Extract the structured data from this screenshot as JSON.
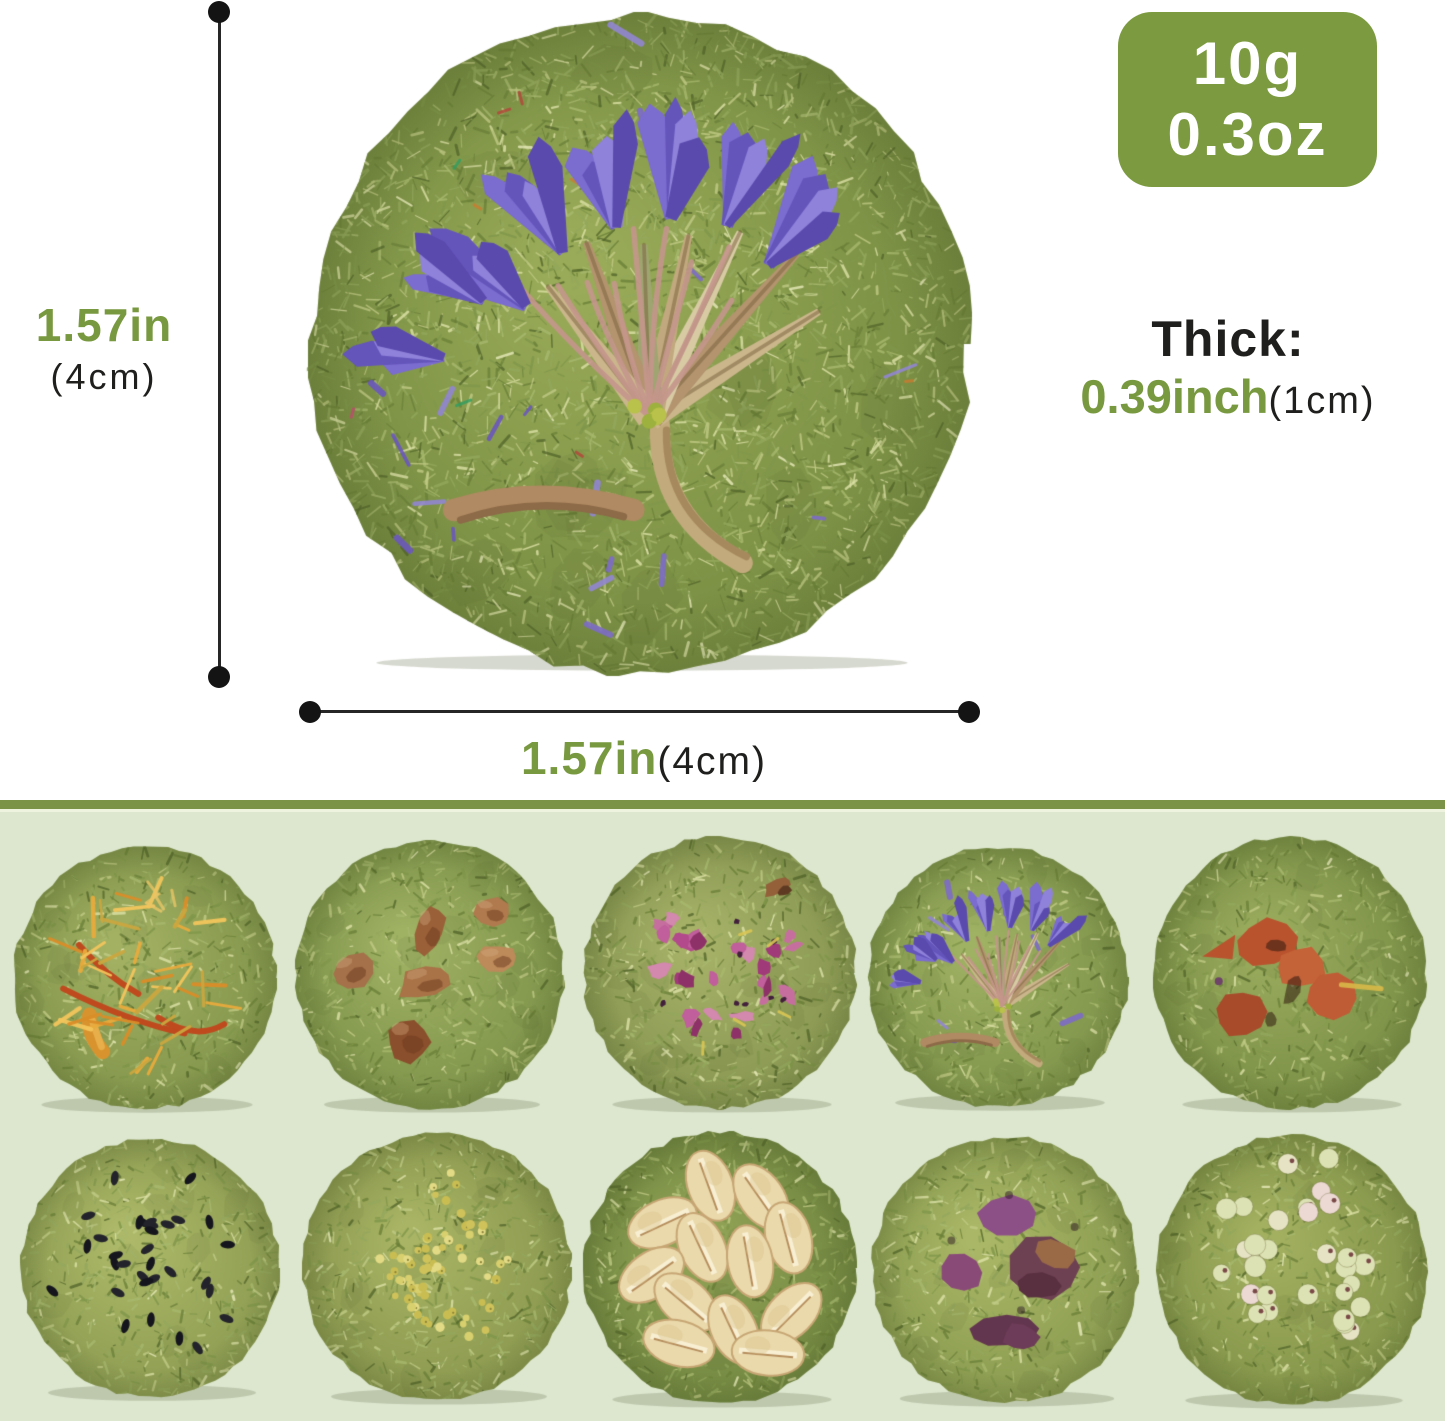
{
  "header_badge": {
    "weight_grams": "10g",
    "weight_ounces": "0.3oz"
  },
  "measurements": {
    "diameter_side": {
      "value": "1.57in",
      "unit": "(4cm)"
    },
    "diameter_bottom": {
      "value": "1.57in",
      "unit": "(4cm)"
    },
    "thickness": {
      "label": "Thick:",
      "value": "0.39inch",
      "unit": "(1cm)"
    }
  },
  "colors": {
    "accent_green": "#78993f",
    "badge_green": "#7c9a40",
    "band_background": "#dde7cf",
    "band_stripe": "#7b9346",
    "text_black": "#1f1f1d",
    "hay_base": "#8fa251",
    "hay_light": "#c6d08b",
    "hay_dark": "#5d7233",
    "cornflower_purple": "#7668cb"
  },
  "hay_cakes": {
    "main_topping": "dried-cornflower",
    "grid_rows": [
      [
        "safflower-petals",
        "dried-apple-pieces",
        "rose-petals",
        "dried-cornflower",
        "dried-carrot-pieces"
      ],
      [
        "black-seeds",
        "millet-seeds",
        "oat-flakes",
        "purple-sweet-potato-pieces",
        "sorghum-seeds"
      ]
    ]
  }
}
